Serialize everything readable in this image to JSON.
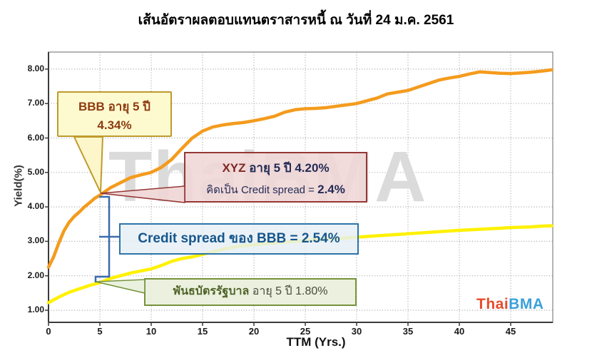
{
  "title": "เส้นอัตราผลตอบแทนตราสารหนี้ ณ วันที่ 24 ม.ค. 2561",
  "watermark": "ThaiBMA",
  "logo": {
    "part1": "Thai",
    "part2": "BMA",
    "color1": "#E64B2C",
    "color2": "#3AA0DB"
  },
  "axes": {
    "x_label": "TTM (Yrs.)",
    "y_label": "Yield(%)",
    "x_tick_labels": [
      "0",
      "5",
      "10",
      "15",
      "20",
      "25",
      "30",
      "35",
      "40",
      "45"
    ],
    "y_tick_labels": [
      "1.00",
      "2.00",
      "3.00",
      "4.00",
      "5.00",
      "6.00",
      "7.00",
      "8.00"
    ]
  },
  "colors": {
    "bbb_curve": "#F49B1D",
    "gov_curve": "#FFF101",
    "grid": "#A3A3A3",
    "frame": "#8C8C8C",
    "axis": "#3B3B3B",
    "bracket": "#3C6CAE",
    "yellow_box_border": "#BF9A2C",
    "red_box_border": "#953735",
    "blue_box_border": "#2E74A8",
    "green_box_border": "#76923C"
  },
  "annotations": {
    "bbb": {
      "bold": "BBB",
      "rest": " อายุ 5 ปี",
      "line2": "4.34%"
    },
    "xyz": {
      "bold": "XYZ",
      "rest": " อายุ 5 ปี 4.20%",
      "line2_pre": "คิดเป็น Credit spread = ",
      "line2_bold": "2.4%"
    },
    "spread": {
      "text": "Credit spread ของ BBB = 2.54%"
    },
    "gov": {
      "bold": "พันธบัตรรัฐบาล",
      "rest": " อายุ 5 ปี 1.80%"
    }
  },
  "chart_data": {
    "type": "line",
    "title": "เส้นอัตราผลตอบแทนตราสารหนี้ ณ วันที่ 24 ม.ค. 2561",
    "xlabel": "TTM (Yrs.)",
    "ylabel": "Yield(%)",
    "xlim": [
      0,
      49.1
    ],
    "ylim": [
      0.55,
      8.45
    ],
    "grid": true,
    "legend": "none",
    "series": [
      {
        "name": "BBB corporate yield curve",
        "color": "#F49B1D",
        "x": [
          0,
          0.5,
          1,
          1.5,
          2,
          2.5,
          3,
          3.5,
          4,
          4.5,
          5,
          6,
          7,
          8,
          9,
          10,
          11,
          12,
          13,
          14,
          15,
          16,
          17,
          18,
          19,
          20,
          21,
          22,
          23,
          24,
          25,
          26,
          27,
          28,
          29,
          30,
          31,
          32,
          33,
          34,
          35,
          36,
          37,
          38,
          39,
          40,
          41,
          42,
          43,
          44,
          45,
          46,
          47,
          48,
          49
        ],
        "y": [
          2.25,
          2.55,
          2.95,
          3.3,
          3.55,
          3.72,
          3.85,
          4.0,
          4.12,
          4.25,
          4.34,
          4.55,
          4.7,
          4.85,
          4.93,
          5.0,
          5.15,
          5.38,
          5.7,
          6.0,
          6.2,
          6.32,
          6.38,
          6.42,
          6.45,
          6.5,
          6.56,
          6.63,
          6.75,
          6.82,
          6.85,
          6.86,
          6.88,
          6.92,
          6.96,
          7.0,
          7.08,
          7.16,
          7.28,
          7.33,
          7.38,
          7.48,
          7.58,
          7.68,
          7.74,
          7.79,
          7.86,
          7.92,
          7.9,
          7.88,
          7.87,
          7.89,
          7.91,
          7.94,
          7.98
        ]
      },
      {
        "name": "Government bond yield curve",
        "color": "#FFF101",
        "x": [
          0,
          0.5,
          1,
          1.5,
          2,
          2.5,
          3,
          3.5,
          4,
          4.5,
          5,
          6,
          7,
          8,
          9,
          10,
          11,
          12,
          13,
          14,
          15,
          16,
          17,
          18,
          19,
          20,
          21,
          22,
          23,
          24,
          25,
          26,
          27,
          28,
          29,
          30,
          32,
          34,
          36,
          38,
          40,
          42,
          44,
          45,
          46,
          47,
          48,
          49
        ],
        "y": [
          1.22,
          1.3,
          1.38,
          1.45,
          1.52,
          1.57,
          1.62,
          1.67,
          1.72,
          1.76,
          1.8,
          1.92,
          2.0,
          2.08,
          2.14,
          2.2,
          2.3,
          2.42,
          2.5,
          2.55,
          2.62,
          2.7,
          2.77,
          2.83,
          2.87,
          2.9,
          2.93,
          2.95,
          2.98,
          3.0,
          3.03,
          3.05,
          3.07,
          3.08,
          3.1,
          3.12,
          3.16,
          3.2,
          3.24,
          3.28,
          3.32,
          3.35,
          3.38,
          3.4,
          3.41,
          3.42,
          3.44,
          3.45
        ]
      }
    ],
    "annotations": [
      {
        "style": "yellow-callout",
        "text": "BBB อายุ 5 ปี 4.34%",
        "anchor_x": 5,
        "anchor_y": 4.34
      },
      {
        "style": "red-callout",
        "text": "XYZ อายุ 5 ปี 4.20% คิดเป็น Credit spread = 2.4%",
        "anchor_x": 5,
        "anchor_y": 4.34
      },
      {
        "style": "blue-bracket-box",
        "text": "Credit spread ของ BBB = 2.54%",
        "bracket_from_y": 4.34,
        "bracket_to_y": 1.8
      },
      {
        "style": "green-callout",
        "text": "พันธบัตรรัฐบาล อายุ 5 ปี 1.80%",
        "anchor_x": 5,
        "anchor_y": 1.8
      }
    ]
  }
}
